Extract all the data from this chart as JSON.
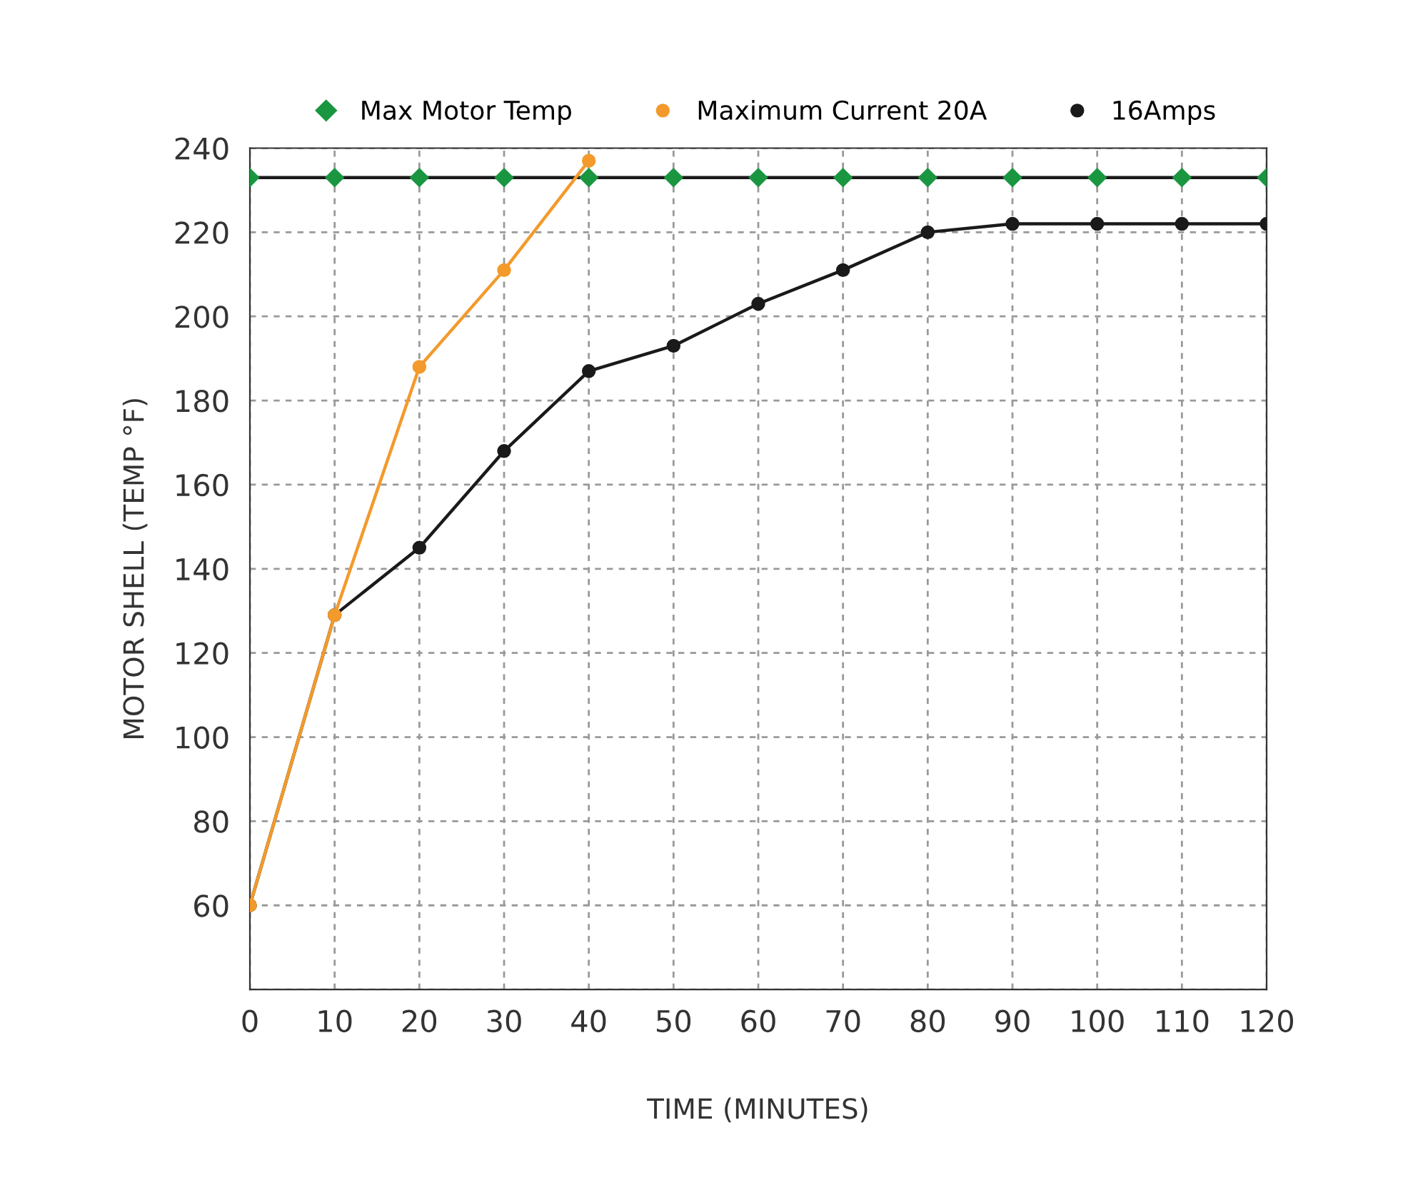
{
  "chart_data": {
    "type": "line",
    "xlabel": "TIME (MINUTES)",
    "ylabel": "MOTOR SHELL (TEMP °F)",
    "xlim": [
      0,
      120
    ],
    "xticks": [
      0,
      10,
      20,
      30,
      40,
      50,
      60,
      70,
      80,
      90,
      100,
      110,
      120
    ],
    "ylim": [
      40,
      240
    ],
    "yticks": [
      {
        "value": 40,
        "label": null
      },
      60,
      80,
      100,
      120,
      140,
      160,
      180,
      200,
      220,
      240
    ],
    "grid": true,
    "ref_lines": [
      {
        "axis": "y",
        "value": 233,
        "color": "#1a1a1a"
      }
    ],
    "legend": "top",
    "line_style": "solid",
    "series": [
      {
        "name": "Max Motor Temp",
        "type": "scatter",
        "color": "#1a9641",
        "marker": "diamond",
        "x": [
          0,
          10,
          20,
          30,
          40,
          50,
          60,
          70,
          80,
          90,
          100,
          110,
          120
        ],
        "values": [
          233,
          233,
          233,
          233,
          233,
          233,
          233,
          233,
          233,
          233,
          233,
          233,
          233
        ]
      },
      {
        "name": "Maximum Current 20A",
        "color": "#f39a2c",
        "marker": "circle",
        "x": [
          0,
          10,
          20,
          30,
          40
        ],
        "values": [
          60,
          129,
          188,
          211,
          237
        ]
      },
      {
        "name": "16Amps",
        "color": "#1a1a1a",
        "marker": "circle",
        "x": [
          0,
          10,
          20,
          30,
          40,
          50,
          60,
          70,
          80,
          90,
          100,
          110,
          120
        ],
        "values": [
          60,
          129,
          145,
          168,
          187,
          193,
          203,
          211,
          220,
          222,
          222,
          222,
          222
        ]
      }
    ]
  }
}
